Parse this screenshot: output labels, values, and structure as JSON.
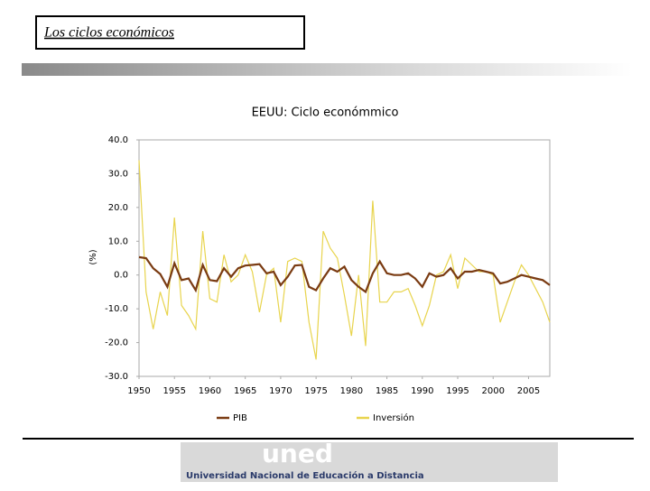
{
  "header": {
    "title": "Los ciclos económicos"
  },
  "footer": {
    "logo": "uned",
    "institution": "Universidad Nacional de Educación a Distancia"
  },
  "chart_data": {
    "type": "line",
    "title": "EEUU: Ciclo económmico",
    "y_label": "(%)",
    "x": [
      1950,
      1951,
      1952,
      1953,
      1954,
      1955,
      1956,
      1957,
      1958,
      1959,
      1960,
      1961,
      1962,
      1963,
      1964,
      1965,
      1966,
      1967,
      1968,
      1969,
      1970,
      1971,
      1972,
      1973,
      1974,
      1975,
      1976,
      1977,
      1978,
      1979,
      1980,
      1981,
      1982,
      1983,
      1984,
      1985,
      1986,
      1987,
      1988,
      1989,
      1990,
      1991,
      1992,
      1993,
      1994,
      1995,
      1996,
      1997,
      1998,
      1999,
      2000,
      2001,
      2002,
      2003,
      2004,
      2005,
      2006,
      2007,
      2008
    ],
    "series": [
      {
        "name": "PIB",
        "color": "#7a3b12",
        "values": [
          5.3,
          5.0,
          2.0,
          0.3,
          -3.5,
          3.5,
          -1.5,
          -1.0,
          -4.5,
          3.0,
          -1.5,
          -1.8,
          2.0,
          -0.5,
          2.0,
          2.8,
          3.0,
          3.2,
          0.5,
          1.0,
          -3.0,
          -0.5,
          2.8,
          3.0,
          -3.5,
          -4.5,
          -1.0,
          2.0,
          1.0,
          2.5,
          -1.5,
          -3.5,
          -5.0,
          0.5,
          4.0,
          0.5,
          0.0,
          0.0,
          0.5,
          -1.0,
          -3.5,
          0.5,
          -0.5,
          0.0,
          2.0,
          -1.0,
          1.0,
          1.0,
          1.5,
          1.0,
          0.5,
          -2.5,
          -2.0,
          -1.0,
          0.0,
          -0.5,
          -1.0,
          -1.5,
          -3.0
        ]
      },
      {
        "name": "Inversión",
        "color": "#e8d44d",
        "values": [
          34,
          -5,
          -16,
          -5,
          -12,
          17,
          -9,
          -12,
          -16,
          13,
          -7,
          -8,
          6,
          -2,
          0,
          6,
          1,
          -11,
          0,
          2,
          -14,
          4,
          5,
          4,
          -14,
          -25,
          13,
          8,
          5,
          -6,
          -18,
          0,
          -21,
          22,
          -8,
          -8,
          -5,
          -5,
          -4,
          -9,
          -15,
          -9,
          0,
          1,
          6,
          -4,
          5,
          3,
          1,
          1,
          0,
          -14,
          -8,
          -2,
          3,
          0,
          -4,
          -8,
          -14
        ]
      }
    ],
    "xlim": [
      1950,
      2008
    ],
    "xticks": [
      1950,
      1955,
      1960,
      1965,
      1970,
      1975,
      1980,
      1985,
      1990,
      1995,
      2000,
      2005
    ],
    "ylim": [
      -30,
      40
    ],
    "yticks": [
      {
        "value": -30,
        "label": "-30.0"
      },
      {
        "value": -20,
        "label": "-20.0"
      },
      {
        "value": -10,
        "label": "-10.0"
      },
      {
        "value": 0,
        "label": "0.0"
      },
      {
        "value": 10,
        "label": "10.0"
      },
      {
        "value": 20,
        "label": "20.0"
      },
      {
        "value": 30,
        "label": "30.0"
      },
      {
        "value": 40,
        "label": "40.0"
      }
    ],
    "grid": false
  }
}
